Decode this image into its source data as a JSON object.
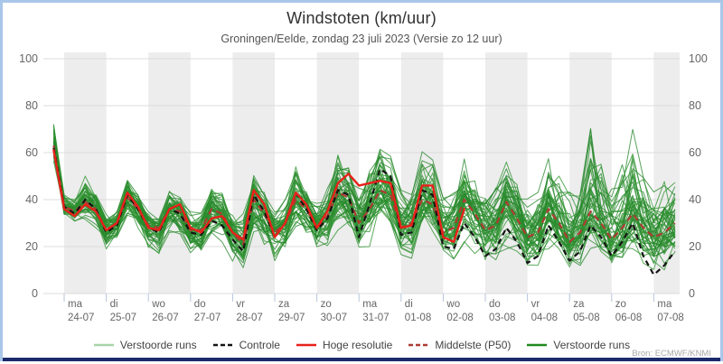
{
  "header": {
    "title": "Windstoten (km/uur)",
    "subtitle": "Groningen/Eelde, zondag 23 juli 2023 (Versie zo 12 uur)"
  },
  "source_credit": "Bron: ECMWF/KNMI",
  "colors": {
    "frame_border": "#a9c7e9",
    "bottom_bar": "#1b2a6b",
    "day_band": "#ededed",
    "gridline": "#dcdcdc",
    "day_tick": "#b6c6da",
    "ensemble_line": "#2e9430",
    "ensemble_line_alt": "#27862b",
    "ensemble_legend_light": "#a8d4a8",
    "ensemble_legend_dark": "#1f8a1f",
    "control_line": "#141414",
    "hires_line": "#e8211a",
    "median_line": "#ae3b33",
    "tick_text": "#666666",
    "title_text": "#303030",
    "subtitle_text": "#555555"
  },
  "y_axis": {
    "ticks": [
      0,
      20,
      40,
      60,
      80,
      100
    ]
  },
  "x_axis": {
    "days": [
      {
        "weekday": "ma",
        "date": "24-07"
      },
      {
        "weekday": "di",
        "date": "25-07"
      },
      {
        "weekday": "wo",
        "date": "26-07"
      },
      {
        "weekday": "do",
        "date": "27-07"
      },
      {
        "weekday": "vr",
        "date": "28-07"
      },
      {
        "weekday": "za",
        "date": "29-07"
      },
      {
        "weekday": "zo",
        "date": "30-07"
      },
      {
        "weekday": "ma",
        "date": "31-07"
      },
      {
        "weekday": "di",
        "date": "01-08"
      },
      {
        "weekday": "wo",
        "date": "02-08"
      },
      {
        "weekday": "do",
        "date": "03-08"
      },
      {
        "weekday": "vr",
        "date": "04-08"
      },
      {
        "weekday": "za",
        "date": "05-08"
      },
      {
        "weekday": "zo",
        "date": "06-08"
      },
      {
        "weekday": "ma",
        "date": "07-08"
      }
    ]
  },
  "legend": [
    {
      "label": "Verstoorde runs",
      "color": "#a8d4a8",
      "dash": "none"
    },
    {
      "label": "Controle",
      "color": "#141414",
      "dash": "5 3"
    },
    {
      "label": "Hoge resolutie",
      "color": "#e8211a",
      "dash": "none"
    },
    {
      "label": "Middelste (P50)",
      "color": "#ae3b33",
      "dash": "5 3"
    },
    {
      "label": "Verstoorde runs",
      "color": "#1f8a1f",
      "dash": "none"
    }
  ],
  "chart_data": {
    "type": "line",
    "title": "Windstoten (km/uur)",
    "subtitle": "Groningen/Eelde, zondag 23 juli 2023 (Versie zo 12 uur)",
    "xlabel": "",
    "ylabel": "km/uur",
    "ylim": [
      0,
      100
    ],
    "grid": "horizontal",
    "legend_position": "bottom",
    "x_hours_after_start": [
      6,
      12,
      18,
      24,
      30,
      36,
      42,
      48,
      54,
      60,
      66,
      72,
      78,
      84,
      90,
      96,
      102,
      108,
      114,
      120,
      126,
      132,
      138,
      144,
      150,
      156,
      162,
      168,
      174,
      180,
      186,
      192,
      198,
      204,
      210,
      216,
      222,
      228,
      234,
      240,
      246,
      252,
      258,
      264,
      270,
      276,
      282,
      288,
      294,
      300,
      306,
      312,
      318,
      324,
      330,
      336,
      342,
      348,
      354,
      360
    ],
    "series": [
      {
        "name": "Controle",
        "style": "dashed-black",
        "values": [
          62,
          37,
          34,
          40,
          36,
          26,
          29,
          42,
          36,
          28,
          26,
          36,
          34,
          26,
          25,
          31,
          29,
          23,
          18,
          42,
          35,
          24,
          30,
          43,
          36,
          27,
          32,
          44,
          42,
          24,
          38,
          53,
          50,
          25,
          26,
          44,
          42,
          20,
          19,
          30,
          24,
          16,
          19,
          28,
          22,
          13,
          16,
          29,
          22,
          14,
          18,
          29,
          24,
          16,
          22,
          30,
          16,
          8,
          12,
          18
        ]
      },
      {
        "name": "Hoge resolutie",
        "style": "solid-red",
        "values": [
          61,
          36,
          33,
          38,
          35,
          27,
          30,
          43,
          37,
          28,
          27,
          36,
          38,
          28,
          26,
          32,
          33,
          26,
          23,
          44,
          38,
          24,
          30,
          43,
          38,
          28,
          35,
          47,
          51,
          46,
          47,
          48,
          47,
          28,
          29,
          46,
          46,
          24,
          22,
          36
        ]
      },
      {
        "name": "Middelste (P50)",
        "style": "dashed-darkred",
        "values": [
          63,
          37,
          35,
          39,
          36,
          27,
          30,
          41,
          36,
          29,
          28,
          36,
          35,
          27,
          27,
          36,
          34,
          26,
          21,
          40,
          34,
          26,
          30,
          40,
          36,
          28,
          33,
          43,
          41,
          30,
          36,
          44,
          42,
          28,
          30,
          40,
          38,
          26,
          28,
          40,
          34,
          27,
          29,
          39,
          32,
          24,
          26,
          36,
          30,
          22,
          26,
          35,
          30,
          23,
          28,
          34,
          28,
          24,
          26,
          30
        ]
      }
    ],
    "ensemble": {
      "name": "Verstoorde runs",
      "count": 50,
      "seed": 20230723,
      "min": [
        56,
        33,
        30,
        30,
        28,
        18,
        20,
        32,
        26,
        18,
        17,
        26,
        22,
        16,
        15,
        22,
        20,
        13,
        11,
        26,
        20,
        13,
        16,
        27,
        22,
        15,
        18,
        27,
        25,
        15,
        20,
        28,
        24,
        14,
        15,
        25,
        22,
        12,
        13,
        20,
        17,
        12,
        13,
        19,
        17,
        10,
        12,
        19,
        16,
        10,
        12,
        17,
        14,
        10,
        12,
        17,
        13,
        8,
        10,
        12
      ],
      "max": [
        75,
        42,
        40,
        50,
        45,
        35,
        36,
        52,
        44,
        36,
        34,
        47,
        42,
        35,
        36,
        48,
        44,
        34,
        36,
        53,
        44,
        36,
        40,
        58,
        48,
        40,
        47,
        62,
        58,
        48,
        55,
        64,
        60,
        45,
        48,
        62,
        58,
        45,
        46,
        58,
        52,
        44,
        45,
        56,
        50,
        44,
        46,
        58,
        52,
        45,
        48,
        80,
        62,
        48,
        55,
        72,
        60,
        45,
        50,
        57
      ]
    }
  }
}
